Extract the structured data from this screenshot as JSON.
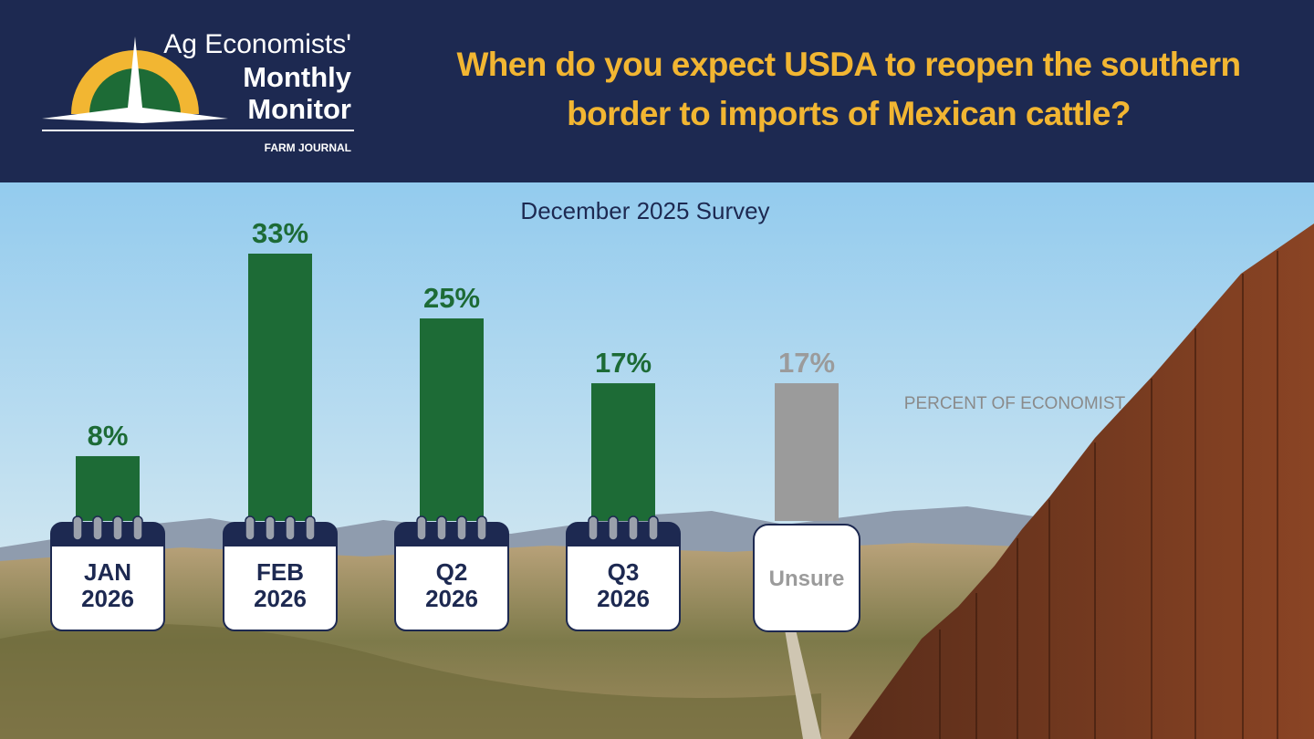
{
  "header": {
    "logo_line1": "Ag Economists'",
    "logo_line2": "Monthly",
    "logo_line3": "Monitor",
    "publisher": "FARM JOURNAL"
  },
  "chart_data": {
    "type": "bar",
    "title": "When do you expect USDA to reopen the southern border to imports of Mexican cattle?",
    "subtitle": "December 2025 Survey",
    "annotation": "PERCENT OF ECONOMIST",
    "categories": [
      [
        "JAN",
        "2026"
      ],
      [
        "FEB",
        "2026"
      ],
      [
        "Q2",
        "2026"
      ],
      [
        "Q3",
        "2026"
      ],
      [
        "Unsure"
      ]
    ],
    "values": [
      8,
      33,
      25,
      17,
      17
    ],
    "value_labels": [
      "8%",
      "33%",
      "25%",
      "17%",
      "17%"
    ],
    "colors": [
      "#1d6b36",
      "#1d6b36",
      "#1d6b36",
      "#1d6b36",
      "#9b9b9b"
    ]
  }
}
